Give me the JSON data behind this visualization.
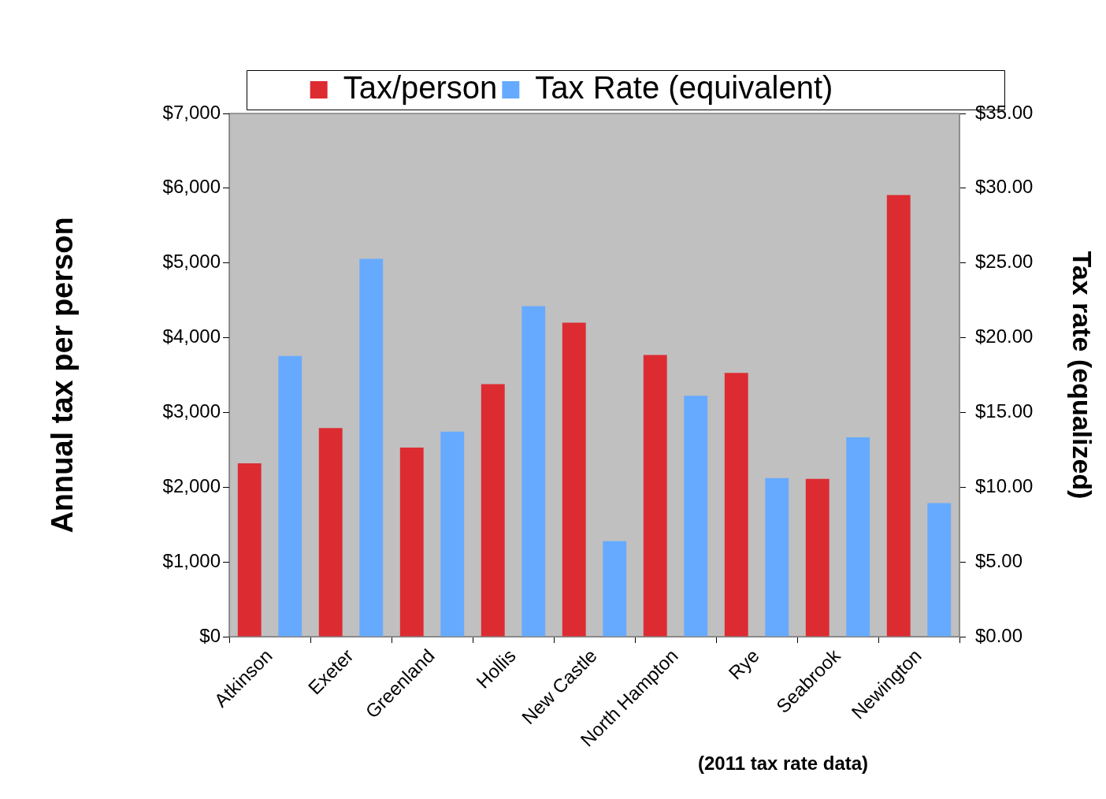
{
  "chart_data": {
    "type": "bar",
    "ylabel": "Annual tax per person",
    "y2label": "Tax rate (equalized)",
    "annotations": [
      "(2011 tax rate data)"
    ],
    "categories": [
      "Atkinson",
      "Exeter",
      "Greenland",
      "Hollis",
      "New Castle",
      "North Hampton",
      "Rye",
      "Seabrook",
      "Newington"
    ],
    "series": [
      {
        "name": "Tax/person",
        "color": "#dc2c32",
        "values": [
          2320,
          2790,
          2530,
          3380,
          4200,
          3770,
          3530,
          2110,
          5910
        ]
      },
      {
        "name": "Tax Rate (equivalent)",
        "color": "#66aaff",
        "axis": "y2",
        "values": [
          18.78,
          25.28,
          13.72,
          22.11,
          6.39,
          16.11,
          10.61,
          13.33,
          8.94
        ]
      }
    ],
    "ylim": [
      0,
      7000
    ],
    "yticks": [
      {
        "value": 0,
        "label": "$0"
      },
      {
        "value": 1000,
        "label": "$1,000"
      },
      {
        "value": 2000,
        "label": "$2,000"
      },
      {
        "value": 3000,
        "label": "$3,000"
      },
      {
        "value": 4000,
        "label": "$4,000"
      },
      {
        "value": 5000,
        "label": "$5,000"
      },
      {
        "value": 6000,
        "label": "$6,000"
      },
      {
        "value": 7000,
        "label": "$7,000"
      }
    ],
    "y2lim": [
      0,
      35
    ],
    "y2ticks": [
      {
        "value": 0,
        "label": "$0.00"
      },
      {
        "value": 5,
        "label": "$5.00"
      },
      {
        "value": 10,
        "label": "$10.00"
      },
      {
        "value": 15,
        "label": "$15.00"
      },
      {
        "value": 20,
        "label": "$20.00"
      },
      {
        "value": 25,
        "label": "$25.00"
      },
      {
        "value": 30,
        "label": "$30.00"
      },
      {
        "value": 35,
        "label": "$35.00"
      }
    ],
    "legend": "top"
  }
}
